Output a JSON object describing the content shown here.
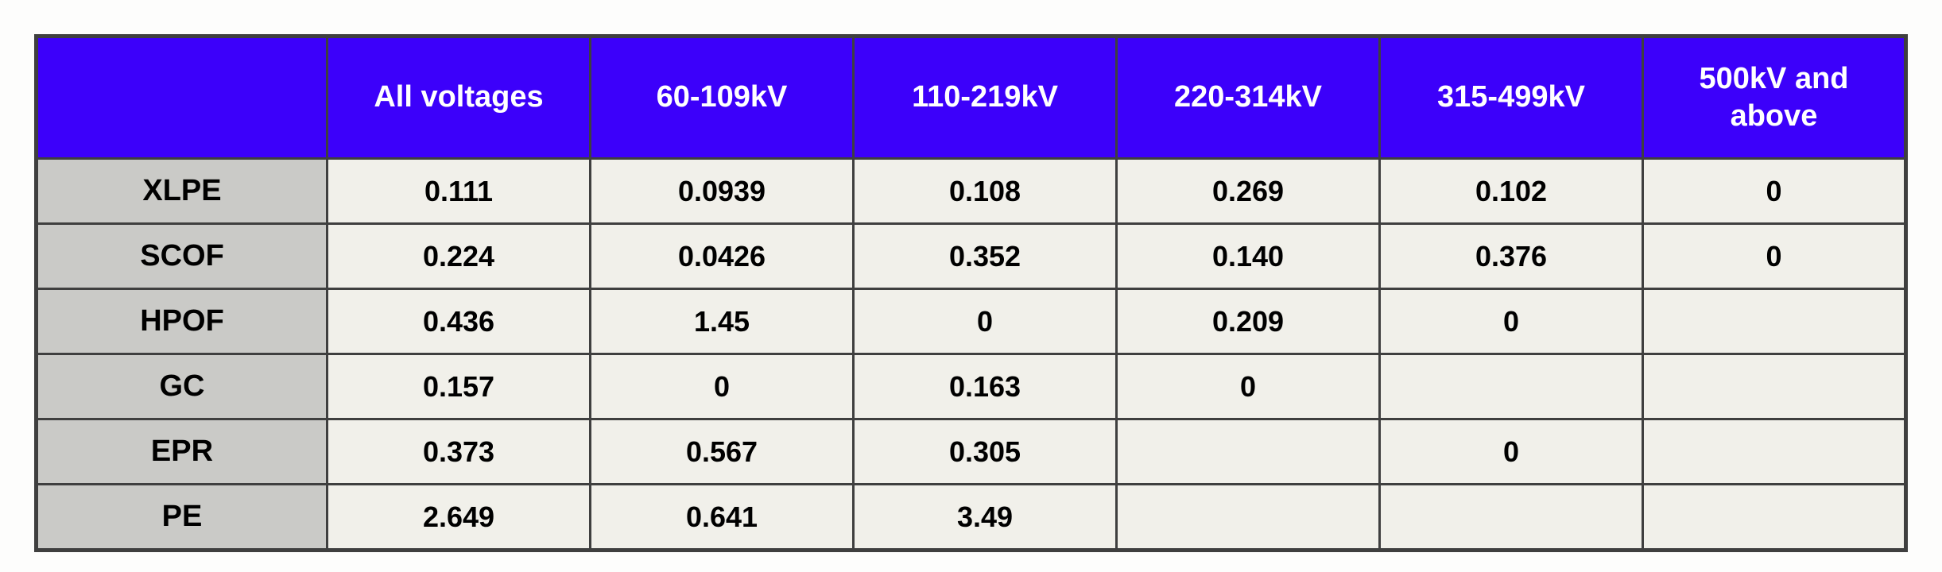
{
  "page": {
    "background": "#fdfdfc"
  },
  "table": {
    "description": "failure-rate-by-cable-type-and-voltage-class",
    "colors": {
      "header_bg": "#3c00fa",
      "header_text": "#ffffff",
      "row_label_bg": "#cacac7",
      "data_cell_bg": "#f1f0ea",
      "border": "#3f3f3f",
      "data_text": "#000000"
    },
    "columns": [
      "",
      "All voltages",
      "60-109kV",
      "110-219kV",
      "220-314kV",
      "315-499kV",
      "500kV and above"
    ],
    "rows": [
      {
        "label": "XLPE",
        "values": [
          "0.111",
          "0.0939",
          "0.108",
          "0.269",
          "0.102",
          "0"
        ]
      },
      {
        "label": "SCOF",
        "values": [
          "0.224",
          "0.0426",
          "0.352",
          "0.140",
          "0.376",
          "0"
        ]
      },
      {
        "label": "HPOF",
        "values": [
          "0.436",
          "1.45",
          "0",
          "0.209",
          "0",
          ""
        ]
      },
      {
        "label": "GC",
        "values": [
          "0.157",
          "0",
          "0.163",
          "0",
          "",
          ""
        ]
      },
      {
        "label": "EPR",
        "values": [
          "0.373",
          "0.567",
          "0.305",
          "",
          "0",
          ""
        ]
      },
      {
        "label": "PE",
        "values": [
          "2.649",
          "0.641",
          "3.49",
          "",
          "",
          ""
        ]
      }
    ]
  },
  "chart_data": {
    "type": "table",
    "title": "",
    "columns": [
      "",
      "All voltages",
      "60-109kV",
      "110-219kV",
      "220-314kV",
      "315-499kV",
      "500kV and above"
    ],
    "row_categories": [
      "XLPE",
      "SCOF",
      "HPOF",
      "GC",
      "EPR",
      "PE"
    ],
    "series": [
      {
        "name": "All voltages",
        "values": [
          0.111,
          0.224,
          0.436,
          0.157,
          0.373,
          2.649
        ]
      },
      {
        "name": "60-109kV",
        "values": [
          0.0939,
          0.0426,
          1.45,
          0,
          0.567,
          0.641
        ]
      },
      {
        "name": "110-219kV",
        "values": [
          0.108,
          0.352,
          0,
          0.163,
          0.305,
          3.49
        ]
      },
      {
        "name": "220-314kV",
        "values": [
          0.269,
          0.14,
          0.209,
          0,
          null,
          null
        ]
      },
      {
        "name": "315-499kV",
        "values": [
          0.102,
          0.376,
          0,
          null,
          0,
          null
        ]
      },
      {
        "name": "500kV and above",
        "values": [
          0,
          0,
          null,
          null,
          null,
          null
        ]
      }
    ],
    "empty_cells_note": "null = blank cell in source table"
  }
}
